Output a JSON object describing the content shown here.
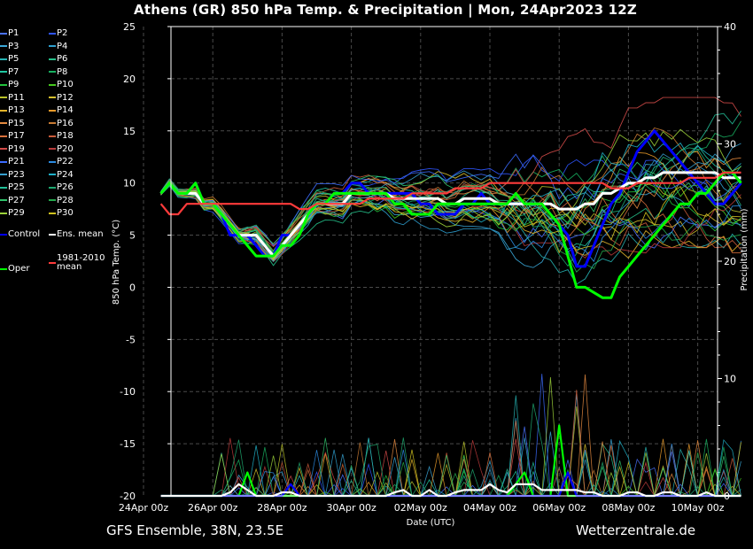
{
  "header": {
    "title": "Athens  (GR)  850 hPa Temp. & Precipitation | Mon, 24Apr2023 12Z"
  },
  "footer": {
    "left": "GFS Ensemble, 38N, 23.5E",
    "right": "Wetterzentrale.de"
  },
  "legend": {
    "items": [
      {
        "label": "P1",
        "color": "#4a72ff"
      },
      {
        "label": "P2",
        "color": "#2f55ff"
      },
      {
        "label": "P3",
        "color": "#3aa7d8"
      },
      {
        "label": "P4",
        "color": "#2e9fcf"
      },
      {
        "label": "P5",
        "color": "#27b6b6"
      },
      {
        "label": "P6",
        "color": "#25c08a"
      },
      {
        "label": "P7",
        "color": "#20c7a0"
      },
      {
        "label": "P8",
        "color": "#17b060"
      },
      {
        "label": "P9",
        "color": "#21c23c"
      },
      {
        "label": "P10",
        "color": "#46c81e"
      },
      {
        "label": "P11",
        "color": "#b9c22a"
      },
      {
        "label": "P12",
        "color": "#d6c02d"
      },
      {
        "label": "P13",
        "color": "#e3b42a"
      },
      {
        "label": "P14",
        "color": "#e89a2a"
      },
      {
        "label": "P15",
        "color": "#e48a3f"
      },
      {
        "label": "P16",
        "color": "#c77a33"
      },
      {
        "label": "P17",
        "color": "#d9703c"
      },
      {
        "label": "P18",
        "color": "#c95b3a"
      },
      {
        "label": "P19",
        "color": "#d24a48"
      },
      {
        "label": "P20",
        "color": "#b83a3a"
      },
      {
        "label": "P21",
        "color": "#3c6cff"
      },
      {
        "label": "P22",
        "color": "#2b8be0"
      },
      {
        "label": "P23",
        "color": "#36a0cf"
      },
      {
        "label": "P24",
        "color": "#1fb0c8"
      },
      {
        "label": "P25",
        "color": "#22bf98"
      },
      {
        "label": "P26",
        "color": "#1ea870"
      },
      {
        "label": "P27",
        "color": "#2fc26a"
      },
      {
        "label": "P28",
        "color": "#24a84c"
      },
      {
        "label": "P29",
        "color": "#9cd23a"
      },
      {
        "label": "P30",
        "color": "#cfc21f"
      },
      {
        "label": "Control",
        "color": "#0000ff"
      },
      {
        "label": "Ens. mean",
        "color": "#ffffff"
      },
      {
        "label": "Oper",
        "color": "#00ff00"
      },
      {
        "label": "1981-2010 mean",
        "color": "#ff3b3b"
      }
    ]
  },
  "chart_data": {
    "type": "line",
    "title": "Athens  (GR)  850 hPa Temp. & Precipitation | Mon, 24Apr2023 12Z",
    "xlabel": "Date (UTC)",
    "ylabel": "850 hPa Temp. (°C)",
    "y2label": "Precipitation (mm)",
    "ylim": [
      -20,
      25
    ],
    "y2lim": [
      0,
      40
    ],
    "yticks": [
      "25",
      "20",
      "15",
      "10",
      "5",
      "0",
      "-5",
      "-10",
      "-15",
      "-20"
    ],
    "y2ticks": [
      "40",
      "30",
      "20",
      "10",
      "0"
    ],
    "xticks": [
      "24Apr 00z",
      "26Apr 00z",
      "28Apr 00z",
      "30Apr 00z",
      "02May 00z",
      "04May 00z",
      "06May 00z",
      "08May 00z",
      "10May 00z"
    ],
    "x_hours_per_step": 6,
    "x_start_offset_steps": 2,
    "grid": true,
    "series": [
      {
        "name": "Control",
        "color": "#0000ff",
        "kind": "temp",
        "values": [
          9,
          10,
          9,
          9,
          10,
          8,
          8,
          7,
          5,
          5,
          5,
          4,
          3,
          3,
          5,
          5,
          6,
          7,
          8,
          8,
          9,
          9,
          10,
          10,
          9,
          9,
          9,
          9,
          9,
          9,
          8,
          8,
          7,
          7,
          7,
          8,
          8,
          9,
          8,
          8,
          8,
          8,
          8,
          8,
          8,
          7,
          6,
          5,
          2,
          2,
          4,
          6,
          8,
          9,
          11,
          13,
          14,
          15,
          14,
          13,
          12,
          11,
          10,
          9,
          8,
          8,
          9,
          10
        ]
      },
      {
        "name": "Ens. mean",
        "color": "#ffffff",
        "kind": "temp",
        "values": [
          9,
          10,
          9,
          9,
          9,
          8,
          8,
          7,
          6,
          5,
          5,
          5,
          4,
          3,
          4,
          5,
          6,
          7,
          8,
          8,
          8,
          8,
          9,
          9,
          9,
          9,
          9,
          8.5,
          8.5,
          8.5,
          8.5,
          8.5,
          8.5,
          8,
          8,
          8.5,
          8.5,
          8.5,
          8.5,
          8,
          8,
          8,
          8,
          8,
          8,
          8,
          7.5,
          7.5,
          7.5,
          8,
          8,
          9,
          9,
          9.5,
          10,
          10,
          10.5,
          10.5,
          11,
          11,
          11,
          11,
          11,
          11,
          11,
          10.5,
          10.5,
          10.5
        ]
      },
      {
        "name": "Oper",
        "color": "#00ff00",
        "kind": "temp",
        "values": [
          9,
          10,
          9,
          9,
          10,
          8,
          8,
          7,
          6,
          5,
          4,
          3,
          3,
          3,
          4,
          4,
          5,
          7,
          8,
          8,
          9,
          9,
          9,
          9,
          9,
          9,
          9,
          8,
          8,
          7,
          7,
          7,
          8,
          8,
          8,
          8,
          8,
          8,
          8,
          8,
          8,
          9,
          8,
          8,
          8,
          7,
          6,
          3,
          0,
          0,
          -0.5,
          -1,
          -1,
          1,
          2,
          3,
          4,
          5,
          6,
          7,
          8,
          8,
          9,
          9,
          10,
          11,
          11,
          10
        ]
      },
      {
        "name": "1981-2010 mean",
        "color": "#ff3b3b",
        "kind": "temp",
        "values": [
          8,
          7,
          7,
          8,
          8,
          8,
          8,
          8,
          8,
          8,
          8,
          8,
          8,
          8,
          8,
          8,
          7.5,
          7.5,
          8,
          8,
          8,
          8,
          8,
          8,
          8.5,
          8.5,
          8.5,
          8.5,
          8.5,
          9,
          9,
          9,
          9,
          9,
          9.5,
          9.5,
          9.5,
          9.5,
          10,
          10,
          10,
          10,
          10,
          10,
          10,
          10,
          10,
          10,
          10,
          10,
          10,
          10,
          9.5,
          9.5,
          9.5,
          10,
          10,
          10,
          10,
          10,
          10,
          10.5,
          10.5,
          10.5,
          10.5,
          11,
          11,
          11
        ]
      },
      {
        "name": "Oper precip",
        "color": "#00ff00",
        "kind": "precip",
        "values": [
          0,
          0,
          0,
          0,
          0,
          0,
          0,
          0,
          0,
          0,
          2,
          0,
          0,
          0,
          0,
          0,
          0,
          0,
          0,
          0,
          0,
          0,
          0,
          0,
          0,
          0,
          0,
          0,
          0,
          0,
          0,
          0,
          0,
          0,
          0,
          0,
          0,
          0,
          0,
          0,
          0,
          1,
          2,
          0,
          0,
          0,
          6,
          0,
          0,
          0,
          0,
          0,
          0,
          0,
          0,
          0,
          0,
          0,
          0,
          0,
          0,
          0,
          0,
          0,
          0,
          0,
          0,
          0
        ]
      },
      {
        "name": "Control precip",
        "color": "#0000ff",
        "kind": "precip",
        "values": [
          0,
          0,
          0,
          0,
          0,
          0,
          0,
          0,
          0,
          0,
          0,
          0,
          0,
          0,
          0,
          1,
          0,
          0,
          0,
          0,
          0,
          0,
          0,
          0,
          0,
          0,
          0,
          0,
          0,
          0,
          0,
          0,
          0,
          0,
          0,
          0,
          0,
          0,
          0,
          0,
          0,
          0,
          0,
          0,
          0,
          0,
          0,
          2,
          0,
          0,
          0,
          0,
          0,
          0,
          0,
          0,
          0,
          0,
          0,
          0,
          0,
          0,
          0,
          0,
          0,
          0,
          0,
          0
        ]
      },
      {
        "name": "Ens. mean precip",
        "color": "#ffffff",
        "kind": "precip",
        "values": [
          0,
          0,
          0,
          0,
          0,
          0,
          0,
          0,
          0.3,
          1,
          0.5,
          0,
          0,
          0,
          0.3,
          0.3,
          0,
          0,
          0,
          0,
          0,
          0,
          0,
          0,
          0,
          0,
          0,
          0.3,
          0.5,
          0,
          0,
          0.5,
          0,
          0,
          0.3,
          0.5,
          0.5,
          0.5,
          1,
          0.5,
          0.3,
          1,
          1,
          1,
          0.5,
          0.5,
          0.5,
          0.5,
          0.5,
          0.3,
          0.3,
          0,
          0,
          0,
          0.3,
          0.3,
          0,
          0,
          0.3,
          0.3,
          0,
          0,
          0,
          0.3,
          0,
          0,
          0,
          0
        ]
      }
    ]
  }
}
